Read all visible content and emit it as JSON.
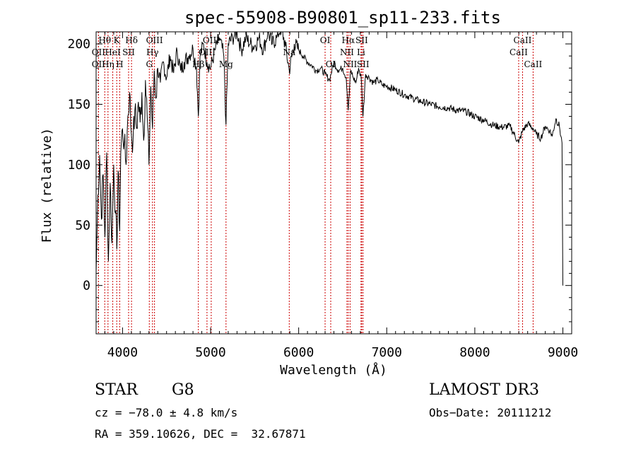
{
  "chart_data": {
    "type": "line",
    "title": "spec-55908-B90801_sp11-233.fits",
    "xlabel": "Wavelength (Å)",
    "ylabel": "Flux (relative)",
    "xlim": [
      3700,
      9100
    ],
    "ylim": [
      -40,
      210
    ],
    "xticks": [
      4000,
      5000,
      6000,
      7000,
      8000,
      9000
    ],
    "yticks": [
      0,
      50,
      100,
      150,
      200
    ],
    "grid": false,
    "series": [
      {
        "name": "spectrum",
        "x": [
          3700,
          3720,
          3740,
          3760,
          3780,
          3800,
          3820,
          3840,
          3860,
          3880,
          3900,
          3920,
          3935,
          3950,
          3968,
          3980,
          4000,
          4020,
          4040,
          4060,
          4080,
          4100,
          4120,
          4140,
          4160,
          4180,
          4200,
          4220,
          4240,
          4260,
          4280,
          4300,
          4320,
          4340,
          4360,
          4380,
          4400,
          4430,
          4460,
          4500,
          4540,
          4580,
          4620,
          4660,
          4700,
          4750,
          4800,
          4840,
          4861,
          4880,
          4920,
          4960,
          5000,
          5050,
          5100,
          5150,
          5175,
          5200,
          5250,
          5300,
          5350,
          5400,
          5450,
          5500,
          5550,
          5600,
          5650,
          5700,
          5750,
          5800,
          5850,
          5893,
          5950,
          6000,
          6050,
          6100,
          6150,
          6200,
          6250,
          6300,
          6350,
          6400,
          6450,
          6500,
          6540,
          6563,
          6590,
          6620,
          6650,
          6680,
          6710,
          6730,
          6760,
          6800,
          6850,
          6900,
          6950,
          7000,
          7100,
          7200,
          7300,
          7400,
          7500,
          7600,
          7700,
          7800,
          7900,
          8000,
          8100,
          8200,
          8300,
          8400,
          8498,
          8542,
          8600,
          8662,
          8700,
          8750,
          8800,
          8850,
          8880,
          8920,
          8960,
          8990,
          9000
        ],
        "values": [
          10,
          75,
          108,
          55,
          92,
          40,
          110,
          20,
          85,
          35,
          100,
          60,
          30,
          95,
          45,
          110,
          130,
          118,
          100,
          140,
          160,
          125,
          120,
          145,
          130,
          152,
          135,
          160,
          120,
          170,
          140,
          100,
          165,
          130,
          178,
          155,
          180,
          168,
          185,
          172,
          190,
          176,
          194,
          178,
          185,
          190,
          196,
          180,
          140,
          190,
          200,
          185,
          180,
          195,
          205,
          190,
          133,
          200,
          205,
          210,
          195,
          205,
          200,
          198,
          205,
          195,
          210,
          200,
          205,
          215,
          198,
          178,
          200,
          195,
          190,
          185,
          182,
          178,
          180,
          175,
          170,
          185,
          178,
          180,
          172,
          145,
          178,
          172,
          168,
          180,
          172,
          140,
          175,
          172,
          168,
          170,
          166,
          165,
          162,
          158,
          155,
          152,
          150,
          148,
          147,
          145,
          144,
          140,
          137,
          133,
          131,
          132,
          118,
          128,
          134,
          130,
          125,
          122,
          132,
          128,
          124,
          138,
          132,
          118,
          0
        ]
      }
    ],
    "spectral_lines": [
      {
        "label": "Hθ",
        "x": 3798,
        "row": 0
      },
      {
        "label": "OII",
        "x": 3727,
        "row": 1
      },
      {
        "label": "OII",
        "x": 3727,
        "row": 2
      },
      {
        "label": "K",
        "x": 3934,
        "row": 0
      },
      {
        "label": "HeI",
        "x": 3889,
        "row": 1
      },
      {
        "label": "Hη",
        "x": 3835,
        "row": 2
      },
      {
        "label": "Hδ",
        "x": 4102,
        "row": 0
      },
      {
        "label": "SII",
        "x": 4069,
        "row": 1
      },
      {
        "label": "H",
        "x": 3968,
        "row": 2
      },
      {
        "label": "OIII",
        "x": 4363,
        "row": 0
      },
      {
        "label": "Hγ",
        "x": 4340,
        "row": 1
      },
      {
        "label": "G",
        "x": 4304,
        "row": 2
      },
      {
        "label": "OIII",
        "x": 5007,
        "row": 0
      },
      {
        "label": "OIII",
        "x": 4959,
        "row": 1
      },
      {
        "label": "Hβ",
        "x": 4861,
        "row": 2
      },
      {
        "label": "Mg",
        "x": 5175,
        "row": 2
      },
      {
        "label": "Na",
        "x": 5893,
        "row": 1
      },
      {
        "label": "OI",
        "x": 6300,
        "row": 0
      },
      {
        "label": "OI",
        "x": 6364,
        "row": 2
      },
      {
        "label": "Hα",
        "x": 6563,
        "row": 0
      },
      {
        "label": "NII",
        "x": 6548,
        "row": 1
      },
      {
        "label": "NII",
        "x": 6584,
        "row": 2
      },
      {
        "label": "SII",
        "x": 6716,
        "row": 0
      },
      {
        "label": "Li",
        "x": 6708,
        "row": 1
      },
      {
        "label": "SII",
        "x": 6731,
        "row": 2
      },
      {
        "label": "CaII",
        "x": 8542,
        "row": 0
      },
      {
        "label": "CaII",
        "x": 8498,
        "row": 1
      },
      {
        "label": "CaII",
        "x": 8662,
        "row": 2
      }
    ]
  },
  "info": {
    "class": "STAR",
    "subclass": "G8",
    "survey": "LAMOST DR3",
    "cz": "cz = −78.0 ± 4.8 km/s",
    "obs_date": "Obs−Date: 20111212",
    "coords": "RA = 359.10626, DEC =  32.67871"
  }
}
